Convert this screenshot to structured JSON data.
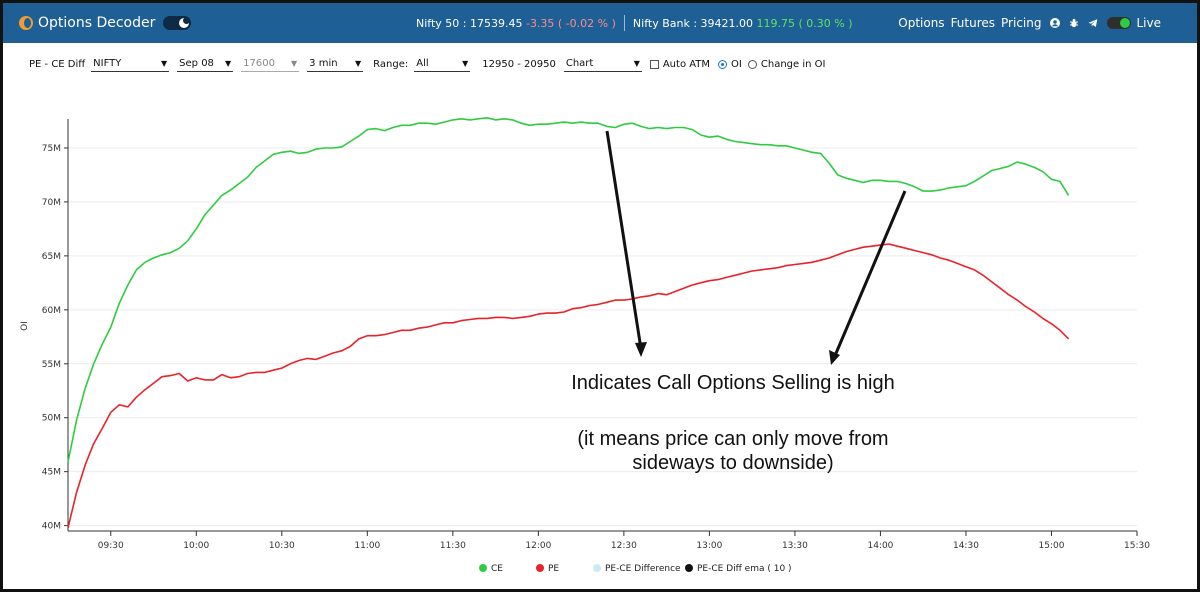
{
  "navbar": {
    "brand": "Options Decoder",
    "nifty_label": "Nifty 50 : 17539.45",
    "nifty_change": "-3.35 ( -0.02 % )",
    "banknifty_label": "Nifty Bank : 39421.00",
    "banknifty_change": "119.75 ( 0.30 % )",
    "links": [
      "Options",
      "Futures",
      "Pricing"
    ],
    "icons": [
      "user-icon",
      "bug-icon",
      "telegram-icon"
    ],
    "live_label": "Live",
    "colors": {
      "bar": "#1e5f96",
      "negative": "#ff8a8a",
      "positive": "#5fe35f",
      "live": "#2ecc40"
    }
  },
  "controls": {
    "mode_label": "PE - CE Diff",
    "symbol": "NIFTY",
    "expiry": "Sep 08",
    "strike": "17600",
    "interval": "3 min",
    "range_label": "Range:",
    "range": "All",
    "range_values": "12950 - 20950",
    "view": "Chart",
    "auto_atm_label": "Auto ATM",
    "oi_label": "OI",
    "change_oi_label": "Change in OI",
    "auto_atm_checked": false,
    "selected_radio": "OI"
  },
  "annotation": {
    "line1": "Indicates Call Options Selling is high",
    "line2": "(it means price can only move from",
    "line3": "sideways to downside)"
  },
  "chart_data": {
    "type": "line",
    "ylabel": "OI",
    "ylim": [
      39.5,
      77.5
    ],
    "yunit": "M",
    "yticks": [
      40,
      45,
      50,
      55,
      60,
      65,
      70,
      75
    ],
    "xtick_labels": [
      "09:30",
      "10:00",
      "10:30",
      "11:00",
      "11:30",
      "12:00",
      "12:30",
      "13:00",
      "13:30",
      "14:00",
      "14:30",
      "15:00",
      "15:30"
    ],
    "x_start": "09:15",
    "x_end": "15:30",
    "x_step_minutes": 3,
    "series": [
      {
        "name": "CE",
        "color": "#2ecc40",
        "values": [
          45.9,
          49.8,
          52.7,
          55.0,
          56.8,
          58.4,
          60.6,
          62.3,
          63.7,
          64.4,
          64.8,
          65.1,
          65.3,
          65.7,
          66.4,
          67.5,
          68.8,
          69.7,
          70.6,
          71.1,
          71.7,
          72.3,
          73.2,
          73.8,
          74.4,
          74.6,
          74.7,
          74.5,
          74.6,
          74.9,
          75.0,
          75.0,
          75.1,
          75.6,
          76.1,
          76.7,
          76.8,
          76.6,
          76.9,
          77.1,
          77.1,
          77.3,
          77.3,
          77.2,
          77.4,
          77.6,
          77.7,
          77.6,
          77.7,
          77.8,
          77.6,
          77.7,
          77.6,
          77.3,
          77.1,
          77.2,
          77.2,
          77.3,
          77.4,
          77.3,
          77.4,
          77.3,
          77.3,
          77.0,
          76.9,
          77.2,
          77.3,
          77.0,
          76.8,
          76.9,
          76.8,
          76.9,
          76.9,
          76.7,
          76.2,
          76.0,
          76.1,
          75.8,
          75.6,
          75.5,
          75.4,
          75.3,
          75.3,
          75.2,
          75.2,
          75.0,
          74.8,
          74.6,
          74.5,
          73.6,
          72.5,
          72.2,
          72.0,
          71.8,
          72.0,
          72.0,
          71.9,
          71.9,
          71.7,
          71.4,
          71.0,
          71.0,
          71.1,
          71.3,
          71.4,
          71.5,
          71.9,
          72.4,
          72.9,
          73.1,
          73.3,
          73.7,
          73.5,
          73.2,
          72.8,
          72.1,
          71.9,
          70.6
        ]
      },
      {
        "name": "PE",
        "color": "#e8232a",
        "values": [
          39.8,
          43.1,
          45.6,
          47.6,
          49.0,
          50.5,
          51.2,
          51.0,
          51.9,
          52.6,
          53.2,
          53.8,
          53.9,
          54.1,
          53.4,
          53.7,
          53.5,
          53.5,
          54.0,
          53.7,
          53.8,
          54.1,
          54.2,
          54.2,
          54.4,
          54.6,
          55.0,
          55.3,
          55.5,
          55.4,
          55.7,
          56.0,
          56.2,
          56.6,
          57.3,
          57.6,
          57.6,
          57.7,
          57.9,
          58.1,
          58.1,
          58.3,
          58.4,
          58.6,
          58.8,
          58.8,
          59.0,
          59.1,
          59.2,
          59.2,
          59.3,
          59.3,
          59.2,
          59.3,
          59.4,
          59.6,
          59.7,
          59.7,
          59.8,
          60.1,
          60.2,
          60.4,
          60.5,
          60.7,
          60.9,
          60.9,
          61.0,
          61.2,
          61.3,
          61.5,
          61.4,
          61.7,
          62.0,
          62.3,
          62.5,
          62.7,
          62.8,
          63.0,
          63.2,
          63.4,
          63.6,
          63.7,
          63.8,
          63.9,
          64.1,
          64.2,
          64.3,
          64.4,
          64.6,
          64.8,
          65.1,
          65.4,
          65.6,
          65.8,
          65.9,
          66.0,
          66.1,
          65.9,
          65.7,
          65.5,
          65.3,
          65.1,
          64.8,
          64.6,
          64.3,
          64.0,
          63.7,
          63.2,
          62.6,
          62.0,
          61.4,
          60.9,
          60.3,
          59.8,
          59.2,
          58.7,
          58.1,
          57.3
        ]
      }
    ],
    "legend": [
      {
        "name": "CE",
        "color": "#2ecc40"
      },
      {
        "name": "PE",
        "color": "#e8232a"
      },
      {
        "name": "PE-CE Difference",
        "color": "#cbe9f9"
      },
      {
        "name": "PE-CE Diff ema ( 10 )",
        "color": "#111111"
      }
    ],
    "legend_position": "bottom",
    "grid": "horizontal"
  }
}
